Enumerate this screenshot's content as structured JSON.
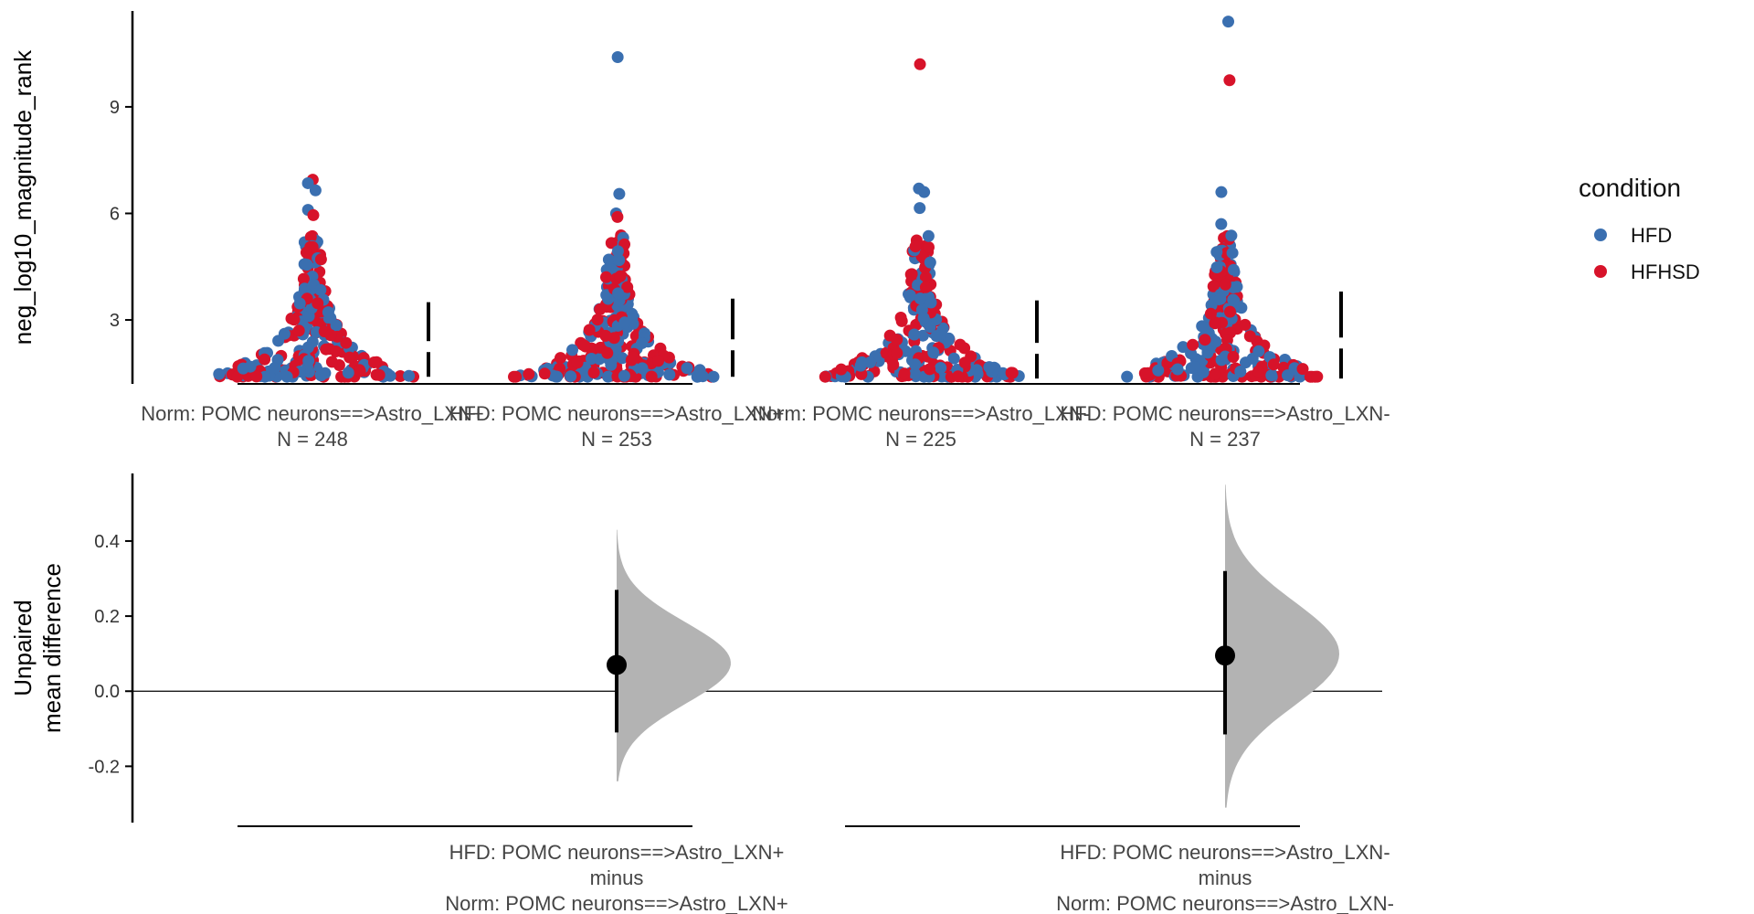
{
  "colors": {
    "HFD": "#3a6fb0",
    "HFHSD": "#d7132a",
    "curve": "#b3b3b3",
    "axis": "#000000"
  },
  "legend": {
    "title": "condition",
    "items": [
      {
        "label": "HFD",
        "color": "#3a6fb0"
      },
      {
        "label": "HFHSD",
        "color": "#d7132a"
      }
    ]
  },
  "chart_data": [
    {
      "type": "scatter",
      "subtype": "swarm",
      "ylabel": "neg_log10_magnitude_rank",
      "yticks": [
        3,
        6,
        9
      ],
      "ylim": [
        1.2,
        11.7
      ],
      "groups": [
        {
          "label": "Norm: POMC neurons==>Astro_LXN+",
          "n_label": "N = 248",
          "n": 248,
          "summary": {
            "gap_low": 1.4,
            "gap_high": 3.5,
            "mean": 2.25
          },
          "outliers": [
            {
              "y": 6.95,
              "c": "HFHSD"
            },
            {
              "y": 6.85,
              "c": "HFD"
            },
            {
              "y": 6.65,
              "c": "HFD"
            },
            {
              "y": 6.1,
              "c": "HFD"
            },
            {
              "y": 5.95,
              "c": "HFHSD"
            }
          ]
        },
        {
          "label": "HFD: POMC neurons==>Astro_LXN+",
          "n_label": "N = 253",
          "n": 253,
          "summary": {
            "gap_low": 1.4,
            "gap_high": 3.6,
            "mean": 2.3
          },
          "outliers": [
            {
              "y": 10.4,
              "c": "HFD"
            },
            {
              "y": 6.55,
              "c": "HFD"
            },
            {
              "y": 6.0,
              "c": "HFD"
            },
            {
              "y": 5.9,
              "c": "HFHSD"
            }
          ]
        },
        {
          "label": "Norm: POMC neurons==>Astro_LXN-",
          "n_label": "N = 225",
          "n": 225,
          "summary": {
            "gap_low": 1.35,
            "gap_high": 3.55,
            "mean": 2.2
          },
          "outliers": [
            {
              "y": 10.2,
              "c": "HFHSD"
            },
            {
              "y": 6.7,
              "c": "HFD"
            },
            {
              "y": 6.6,
              "c": "HFD"
            },
            {
              "y": 6.15,
              "c": "HFD"
            }
          ]
        },
        {
          "label": "HFD: POMC neurons==>Astro_LXN-",
          "n_label": "N = 237",
          "n": 237,
          "summary": {
            "gap_low": 1.35,
            "gap_high": 3.8,
            "mean": 2.35
          },
          "outliers": [
            {
              "y": 11.4,
              "c": "HFD"
            },
            {
              "y": 9.75,
              "c": "HFHSD"
            },
            {
              "y": 6.6,
              "c": "HFD"
            },
            {
              "y": 5.7,
              "c": "HFD"
            }
          ]
        }
      ]
    },
    {
      "type": "scatter",
      "subtype": "estimation",
      "ylabel_lines": [
        "Unpaired",
        "mean difference"
      ],
      "yticks": [
        -0.2,
        0.0,
        0.2,
        0.4
      ],
      "ylim": [
        -0.35,
        0.58
      ],
      "contrasts": [
        {
          "label_lines": [
            "HFD: POMC neurons==>Astro_LXN+",
            "minus",
            "Norm: POMC neurons==>Astro_LXN+"
          ],
          "mean_diff": 0.07,
          "ci": [
            -0.11,
            0.27
          ],
          "dist_range": [
            -0.24,
            0.43
          ]
        },
        {
          "label_lines": [
            "HFD: POMC neurons==>Astro_LXN-",
            "minus",
            "Norm: POMC neurons==>Astro_LXN-"
          ],
          "mean_diff": 0.095,
          "ci": [
            -0.115,
            0.32
          ],
          "dist_range": [
            -0.31,
            0.55
          ]
        }
      ]
    }
  ]
}
